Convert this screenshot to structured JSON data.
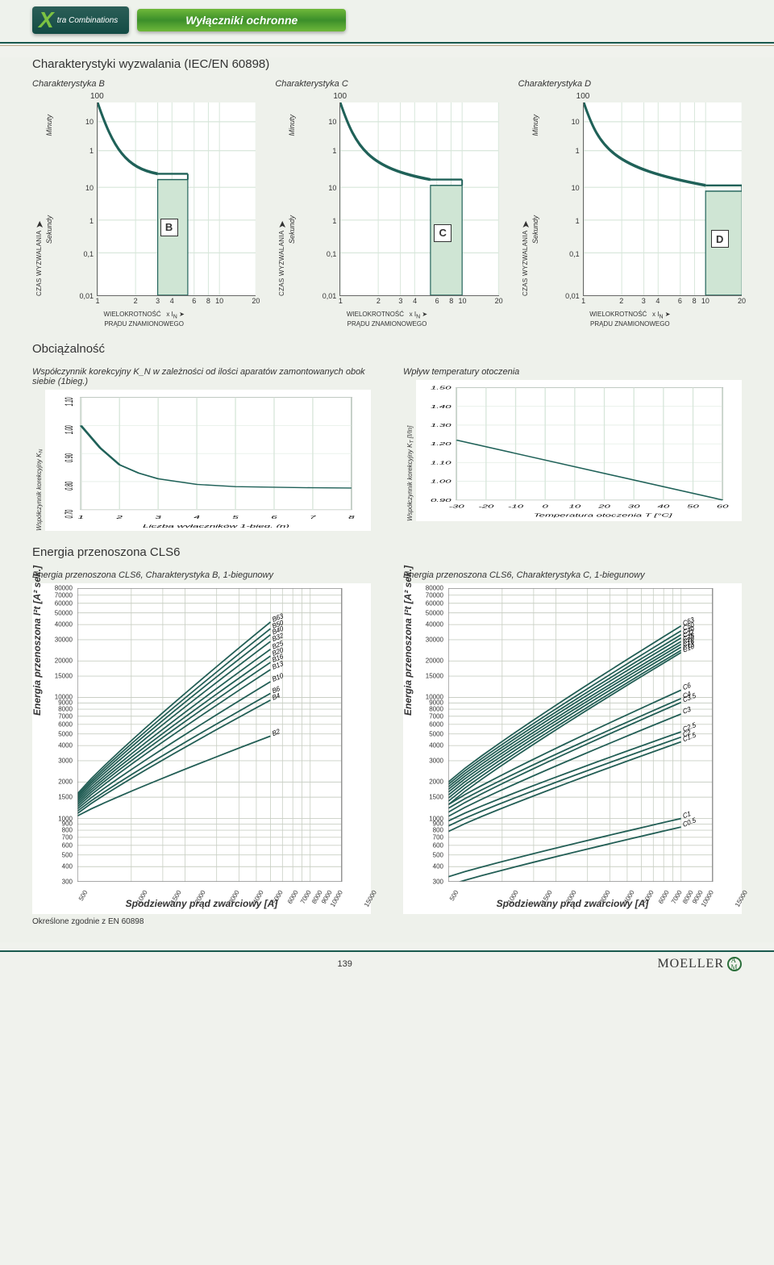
{
  "header": {
    "xtra_label": "tra Combinations",
    "title_ribbon": "Wyłączniki ochronne"
  },
  "trip": {
    "section_title": "Charakterystyki wyzwalania (IEC/EN 60898)",
    "minuty": "Minuty",
    "sekundy": "Sekundy",
    "czas_label": "CZAS WYZWALANIA",
    "xaxis_line1": "WIELOKROTNOŚĆ",
    "xaxis_line2_prefix": "PRĄDU ZNAMIONOWEGO",
    "x_In": "x I",
    "x_In_sub": "N",
    "top_value": "100",
    "y_ticks_labels": [
      "10",
      "1",
      "10",
      "1",
      "0,1",
      "0,01"
    ],
    "y_ticks_pct": [
      10,
      25,
      44,
      61,
      78,
      100
    ],
    "x_ticks_labels": [
      "1",
      "2",
      "3",
      "4",
      "6",
      "8",
      "10",
      "20"
    ],
    "x_ticks_pct": [
      0,
      24,
      38,
      47,
      61,
      70,
      77,
      100
    ],
    "grid_color": "#d7e6da",
    "curve_color": "#1f6158",
    "band_fill": "#cfe5d4",
    "band": {
      "B": {
        "title": "Charakterystyka B",
        "badge": "B",
        "x1_pct": 38,
        "x2_pct": 57,
        "top_pct": 40
      },
      "C": {
        "title": "Charakterystyka C",
        "badge": "C",
        "x1_pct": 57,
        "x2_pct": 77,
        "top_pct": 43
      },
      "D": {
        "title": "Charakterystyka D",
        "badge": "D",
        "x1_pct": 77,
        "x2_pct": 100,
        "top_pct": 46
      }
    }
  },
  "load": {
    "section_title": "Obciążalność",
    "kn": {
      "title": "Współczynnik korekcyjny K_N w zależności od ilości aparatów zamontowanych obok siebie (1bieg.)",
      "xlabel": "Liczba wyłączników 1-bieg. (n)",
      "ylabel": "Współczynnik korekcyjny K",
      "ylabel_sub": "N",
      "y_ticks": [
        0.7,
        0.8,
        0.9,
        1.0,
        1.1
      ],
      "x_ticks": [
        1,
        2,
        3,
        4,
        5,
        6,
        7,
        8
      ],
      "points": [
        [
          1,
          1.0
        ],
        [
          1.5,
          0.92
        ],
        [
          2,
          0.86
        ],
        [
          2.5,
          0.83
        ],
        [
          3,
          0.81
        ],
        [
          4,
          0.79
        ],
        [
          5,
          0.782
        ],
        [
          6,
          0.78
        ],
        [
          7,
          0.778
        ],
        [
          8,
          0.777
        ]
      ],
      "line_color": "#1f6158",
      "grid_color": "#d7e6da"
    },
    "kt": {
      "title": "Wpływ temperatury otoczenia",
      "xlabel": "Temperatura otoczenia T [°C]",
      "ylabel": "Współczynnik korekcyjny K",
      "ylabel_sub": "T",
      "y_unit": "[I/In]",
      "y_ticks": [
        0.9,
        1.0,
        1.1,
        1.2,
        1.3,
        1.4,
        1.5
      ],
      "x_ticks": [
        -30,
        -20,
        -10,
        0,
        10,
        20,
        30,
        40,
        50,
        60
      ],
      "points": [
        [
          -30,
          1.22
        ],
        [
          60,
          0.9
        ]
      ],
      "line_color": "#1f6158",
      "grid_color": "#d7e6da"
    }
  },
  "energy": {
    "section_title": "Energia przenoszona CLS6",
    "ylabel": "Energia przenoszona I²t [A² sek.]",
    "xlabel": "Spodziewany prąd zwarciowy [A]",
    "note": "Określone zgodnie z EN 60898",
    "y_ticks": [
      300,
      400,
      500,
      600,
      700,
      800,
      900,
      1000,
      1500,
      2000,
      3000,
      4000,
      5000,
      6000,
      7000,
      8000,
      9000,
      10000,
      15000,
      20000,
      30000,
      40000,
      50000,
      60000,
      70000,
      80000
    ],
    "x_ticks": [
      500,
      1000,
      1500,
      2000,
      3000,
      4000,
      5000,
      6000,
      7000,
      8000,
      9000,
      10000,
      15000
    ],
    "grid_color": "#c9cfc4",
    "line_color": "#225e55",
    "B": {
      "title": "Energia przenoszona CLS6, Charakterystyka B, 1-biegunowy",
      "series": [
        {
          "label": "B63",
          "end_y": 42000
        },
        {
          "label": "B50",
          "end_y": 37000
        },
        {
          "label": "B40",
          "end_y": 33000
        },
        {
          "label": "B32",
          "end_y": 29000
        },
        {
          "label": "B25",
          "end_y": 25000
        },
        {
          "label": "B20",
          "end_y": 22000
        },
        {
          "label": "B16",
          "end_y": 19500
        },
        {
          "label": "B13",
          "end_y": 17000
        },
        {
          "label": "B10",
          "end_y": 13500
        },
        {
          "label": "B6",
          "end_y": 10800
        },
        {
          "label": "B4",
          "end_y": 9500
        },
        {
          "label": "B2",
          "end_y": 4800
        }
      ],
      "start_x": 500,
      "start_y_low": 1050,
      "start_y_high": 1600,
      "end_x": 6000,
      "b2_start_y": 1050
    },
    "C": {
      "title": "Energia przenoszona CLS6, Charakterystyka C, 1-biegunowy",
      "groups": [
        {
          "start_y_range": [
            1300,
            2000
          ],
          "end_x": 10000,
          "series": [
            {
              "label": "C63",
              "end_y": 39000
            },
            {
              "label": "C50",
              "end_y": 35500
            },
            {
              "label": "C40",
              "end_y": 33000
            },
            {
              "label": "C32",
              "end_y": 31000
            },
            {
              "label": "C25",
              "end_y": 29000
            },
            {
              "label": "C20",
              "end_y": 27500
            },
            {
              "label": "C16",
              "end_y": 26000
            },
            {
              "label": "C13",
              "end_y": 24500
            },
            {
              "label": "C10",
              "end_y": 23500
            }
          ]
        },
        {
          "start_y_range": [
            780,
            1300
          ],
          "end_x": 10000,
          "series": [
            {
              "label": "C6",
              "end_y": 11500
            },
            {
              "label": "C4",
              "end_y": 9800
            },
            {
              "label": "C3.5",
              "end_y": 9100
            },
            {
              "label": "C3",
              "end_y": 7300
            },
            {
              "label": "C2.5",
              "end_y": 5200
            },
            {
              "label": "C2",
              "end_y": 4700
            },
            {
              "label": "C1.5",
              "end_y": 4300
            }
          ]
        },
        {
          "start_y_range": [
            280,
            330
          ],
          "end_x": 10000,
          "series": [
            {
              "label": "C1",
              "end_y": 1000
            },
            {
              "label": "C0.5",
              "end_y": 850
            }
          ]
        }
      ]
    }
  },
  "footer": {
    "page_number": "139",
    "brand": "MOELLER"
  }
}
